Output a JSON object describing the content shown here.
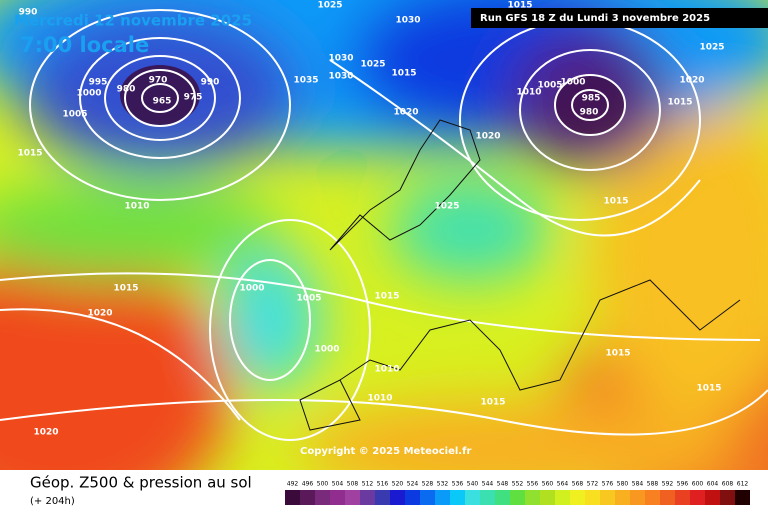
{
  "header": {
    "date": "Mercredi 12 novembre 2025",
    "time": "7:00 locale",
    "run": "Run GFS 18 Z du Lundi 3 novembre 2025"
  },
  "copyright": "Copyright © 2025 Meteociel.fr",
  "footer": {
    "title": "Géop. Z500 & pression au sol",
    "lead": "(+ 204h)"
  },
  "isobar_labels": [
    "990",
    "1025",
    "1030",
    "1015",
    "1025",
    "995",
    "970",
    "990",
    "1000",
    "980",
    "975",
    "965",
    "1035",
    "1030",
    "1030",
    "1025",
    "1015",
    "1010",
    "1005",
    "1000",
    "985",
    "980",
    "1020",
    "1015",
    "1005",
    "1020",
    "1020",
    "1015",
    "1010",
    "1025",
    "1015",
    "1015",
    "1000",
    "1005",
    "1015",
    "1020",
    "1000",
    "1015",
    "1010",
    "1015",
    "1010",
    "1015",
    "1020"
  ],
  "legend": [
    492,
    496,
    500,
    504,
    508,
    512,
    516,
    520,
    524,
    528,
    532,
    536,
    540,
    544,
    548,
    552,
    556,
    560,
    564,
    568,
    572,
    576,
    580,
    584,
    588,
    592,
    596,
    600,
    604,
    608,
    612
  ]
}
